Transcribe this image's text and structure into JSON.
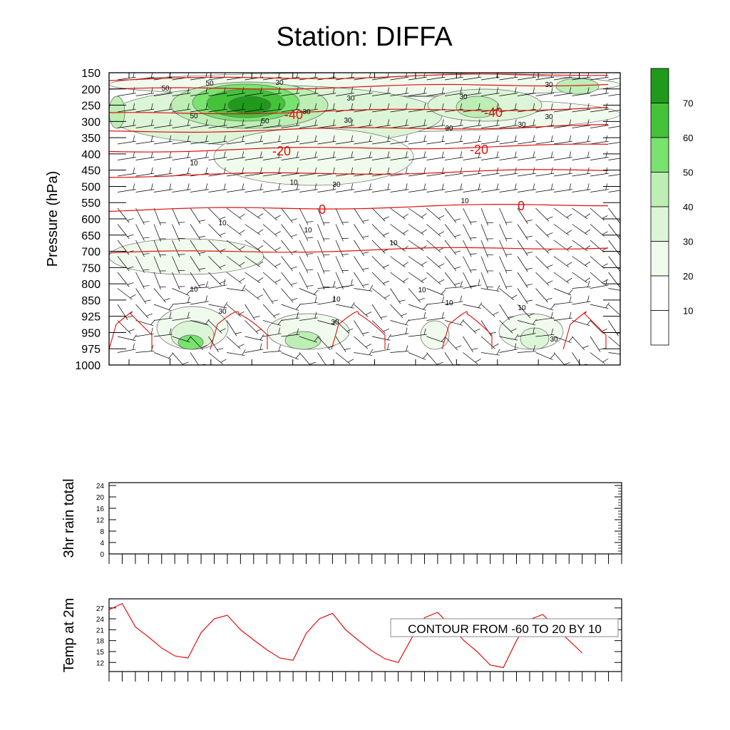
{
  "title": "Station: DIFFA",
  "chart_data": [
    {
      "type": "contour",
      "panel": "upper-air time-height section",
      "ylabel": "Pressure (hPa)",
      "y_ticks": [
        "150",
        "200",
        "250",
        "300",
        "350",
        "400",
        "450",
        "500",
        "550",
        "600",
        "650",
        "700",
        "750",
        "800",
        "850",
        "925",
        "950",
        "975",
        "1000"
      ],
      "x_tick_count": 13,
      "wind_speed_fill_levels": [
        10,
        20,
        30,
        40,
        50,
        60,
        70
      ],
      "wind_speed_fill_colors": [
        "#ffffff",
        "#f0fbee",
        "#dcf5d7",
        "#bdeeb4",
        "#78e36e",
        "#44c23a",
        "#1f9a1a"
      ],
      "colorbar_labels": [
        "10",
        "20",
        "30",
        "40",
        "50",
        "60",
        "70"
      ],
      "wind_speed_contour_labels": [
        "50",
        "50",
        "30",
        "30",
        "30",
        "30",
        "30",
        "50",
        "50",
        "30",
        "30",
        "30",
        "30",
        "10",
        "10",
        "30",
        "10",
        "10",
        "10",
        "10",
        "10",
        "10",
        "10",
        "10",
        "10",
        "30",
        "30",
        "30"
      ],
      "temperature_contours": [
        {
          "level": -40,
          "label": "-40",
          "pressure": 275
        },
        {
          "level": -20,
          "label": "-20",
          "pressure": 390
        },
        {
          "level": 0,
          "label": "0",
          "pressure": 575
        }
      ],
      "isotherm_color": "#e01010"
    },
    {
      "type": "line",
      "panel": "precipitation",
      "ylabel": "3hr rain total",
      "y_ticks": [
        "0",
        "4",
        "8",
        "12",
        "16",
        "20",
        "24"
      ],
      "ylim": [
        0,
        25
      ],
      "x_tick_count": 40,
      "values": []
    },
    {
      "type": "line",
      "panel": "surface temperature",
      "ylabel": "Temp at 2m",
      "y_ticks": [
        "12",
        "15",
        "18",
        "21",
        "24",
        "27"
      ],
      "ylim": [
        9.5,
        29.5
      ],
      "x_tick_count": 40,
      "series": [
        {
          "color": "#e01010",
          "values": [
            26.5,
            28.2,
            21.8,
            19.0,
            16.0,
            13.8,
            13.2,
            20.2,
            24.0,
            25.0,
            21.0,
            18.2,
            15.5,
            13.2,
            12.6,
            20.0,
            24.0,
            25.5,
            21.0,
            18.0,
            15.2,
            13.0,
            12.0,
            18.5,
            24.3,
            25.8,
            22.0,
            18.0,
            15.0,
            11.3,
            10.6,
            18.0,
            23.8,
            25.2,
            21.5,
            18.0,
            14.6
          ]
        }
      ],
      "annotation": "CONTOUR FROM -60 TO 20 BY 10"
    }
  ]
}
